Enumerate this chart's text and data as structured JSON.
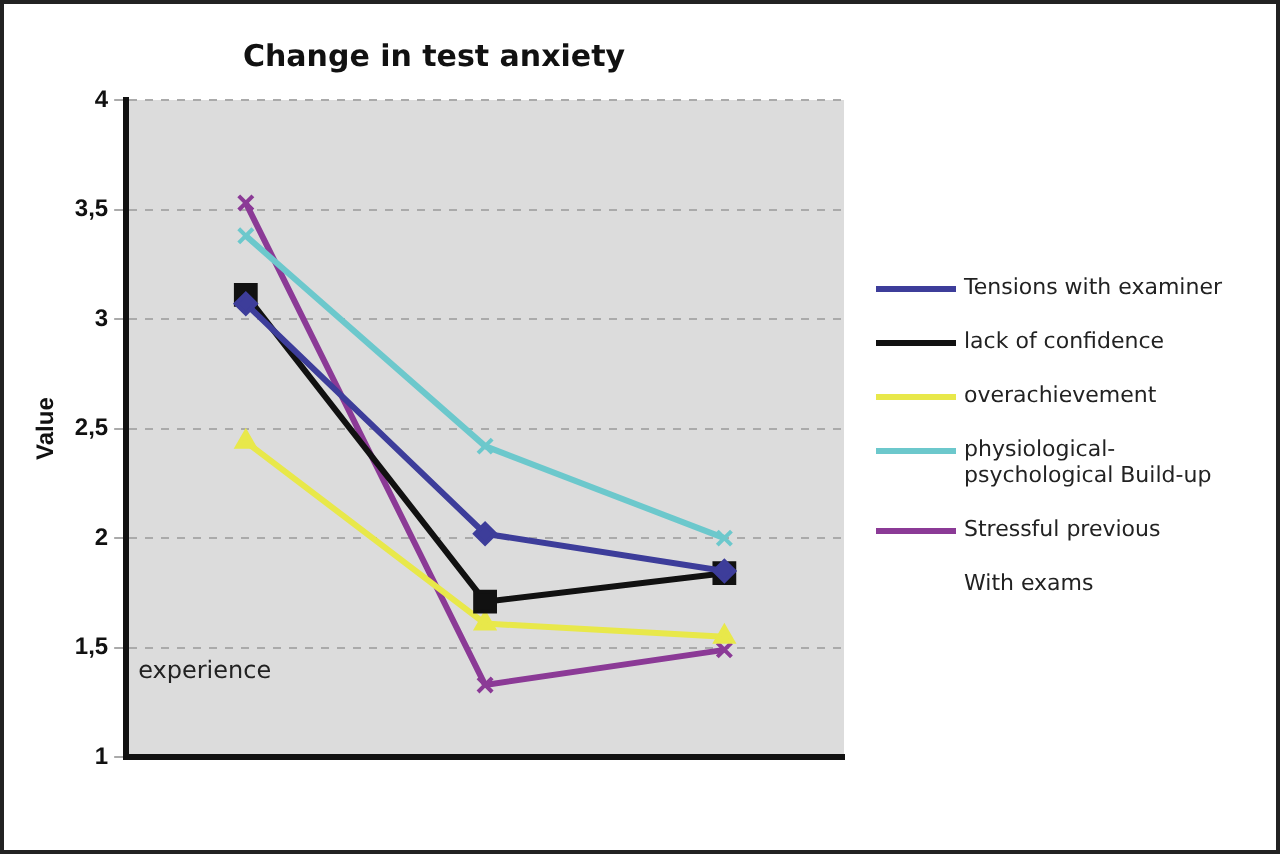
{
  "chart_data": {
    "type": "line",
    "title": "Change in test anxiety",
    "ylabel": "Value",
    "categories": [
      null,
      null,
      null
    ],
    "series": [
      {
        "name": "Tensions with examiner",
        "color": "#3d3d9a",
        "marker": "diamond",
        "values": [
          3.07,
          2.02,
          1.85
        ]
      },
      {
        "name": "lack of confidence",
        "color": "#111111",
        "marker": "square",
        "values": [
          3.11,
          1.71,
          1.84
        ]
      },
      {
        "name": "overachievement",
        "color": "#e8e84a",
        "marker": "triangle",
        "values": [
          2.44,
          1.61,
          1.55
        ]
      },
      {
        "name": "physiological-psychological Build-up",
        "color": "#6cc8cc",
        "marker": "cross",
        "values": [
          3.38,
          2.42,
          2.0
        ]
      },
      {
        "name": "Stressful previous",
        "color": "#8b3a96",
        "marker": "cross",
        "values": [
          3.53,
          1.33,
          1.49
        ]
      }
    ],
    "ylim": [
      1,
      4
    ],
    "yticks": [
      {
        "value": 1,
        "label": "1"
      },
      {
        "value": 1.5,
        "label": "1,5"
      },
      {
        "value": 2,
        "label": "2"
      },
      {
        "value": 2.5,
        "label": "2,5"
      },
      {
        "value": 3,
        "label": "3"
      },
      {
        "value": 3.5,
        "label": "3,5"
      },
      {
        "value": 4,
        "label": "4"
      }
    ],
    "grid": "y",
    "legend": "right",
    "annotations": [
      "experience",
      "With exams"
    ]
  }
}
